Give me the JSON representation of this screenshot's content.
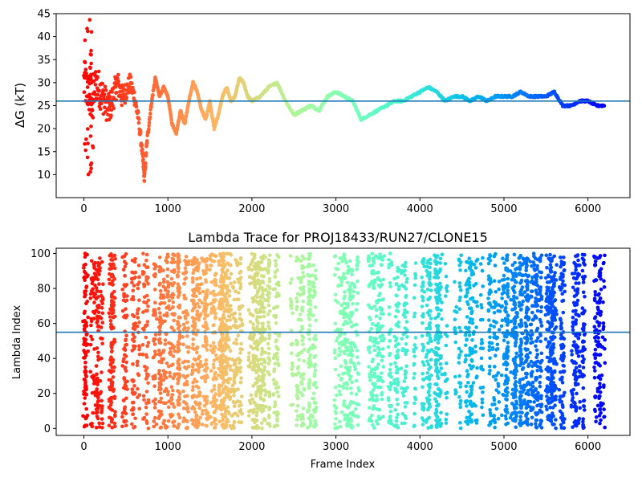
{
  "chart_data": [
    {
      "type": "scatter",
      "title": "",
      "xlabel": "",
      "ylabel": "ΔG (kT)",
      "xlim": [
        -330,
        6500
      ],
      "ylim": [
        5,
        45
      ],
      "xticks": [
        0,
        1000,
        2000,
        3000,
        4000,
        5000,
        6000
      ],
      "yticks": [
        10,
        15,
        20,
        25,
        30,
        35,
        40,
        45
      ],
      "hline": 26.0,
      "hline_color": "#1f77b4",
      "colormap": "rainbow (color shifts from red at frame 0 toward purple at the final frame)",
      "grid": false,
      "series": [
        {
          "x": [
            0,
            50,
            100,
            150,
            200,
            250,
            300,
            350,
            400,
            450,
            500,
            550,
            600,
            650,
            700,
            720,
            750,
            800,
            850,
            900,
            950,
            1000,
            1050,
            1100,
            1150,
            1200,
            1250,
            1300,
            1350,
            1400,
            1450,
            1500,
            1550,
            1600,
            1650,
            1700,
            1750,
            1800,
            1850,
            1900,
            1950,
            2000,
            2100,
            2200,
            2300,
            2400,
            2500,
            2600,
            2700,
            2800,
            2900,
            3000,
            3100,
            3200,
            3300,
            3400,
            3500,
            3600,
            3700,
            3800,
            3900,
            4000,
            4100,
            4200,
            4300,
            4400,
            4500,
            4600,
            4700,
            4800,
            4900,
            5000,
            5100,
            5200,
            5300,
            5400,
            5500,
            5600,
            5700,
            5800,
            5900,
            6000,
            6100,
            6200
          ],
          "values": [
            30,
            28,
            27,
            30,
            28,
            26,
            24,
            27,
            30,
            27,
            28,
            30,
            27,
            22,
            14,
            9,
            17,
            25,
            31,
            27,
            29,
            27,
            21,
            19,
            24,
            21,
            26,
            30,
            28,
            24,
            22,
            26,
            20,
            23,
            27,
            29,
            26,
            27,
            31,
            30,
            27,
            26,
            27,
            29,
            30,
            26,
            23,
            24,
            25,
            24,
            27,
            28,
            27,
            26,
            22,
            23,
            24,
            25,
            26,
            26,
            27,
            28,
            29,
            28,
            26,
            27,
            27,
            26,
            27,
            26,
            27,
            27,
            27,
            28,
            27,
            27,
            27,
            28,
            25,
            25,
            26,
            26,
            25,
            25
          ]
        }
      ]
    },
    {
      "type": "scatter",
      "title": "Lambda Trace for PROJ18433/RUN27/CLONE15",
      "xlabel": "Frame Index",
      "ylabel": "Lambda Index",
      "xlim": [
        -330,
        6500
      ],
      "ylim": [
        -4,
        103
      ],
      "xticks": [
        0,
        1000,
        2000,
        3000,
        4000,
        5000,
        6000
      ],
      "yticks": [
        0,
        20,
        40,
        60,
        80,
        100
      ],
      "hline": 55,
      "hline_color": "#1f77b4",
      "colormap": "rainbow (color shifts from red at frame 0 toward purple at the final frame)",
      "grid": false,
      "x_range": [
        0,
        6200
      ],
      "value_range": [
        0,
        100
      ]
    }
  ]
}
